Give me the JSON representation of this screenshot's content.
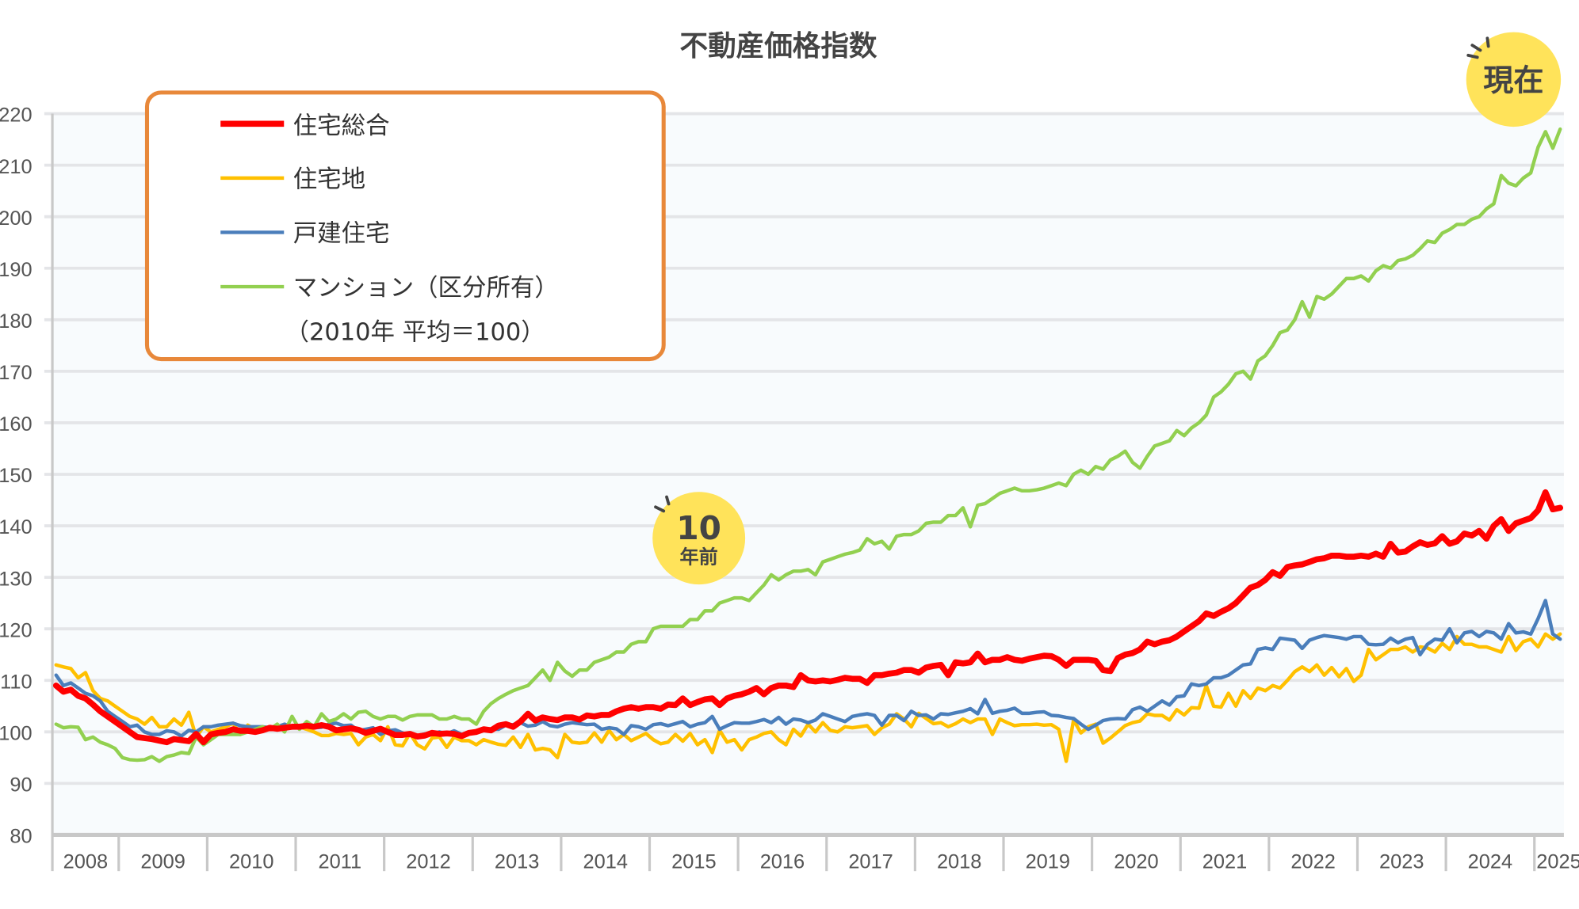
{
  "chart_data": {
    "type": "line",
    "title": "不動産価格指数",
    "note": "（2010年 平均＝100）",
    "ylim": [
      80,
      220
    ],
    "yticks": [
      80,
      90,
      100,
      110,
      120,
      130,
      140,
      150,
      160,
      170,
      180,
      190,
      200,
      210,
      220
    ],
    "x_start": "2008-04",
    "x_frequency": "monthly",
    "year_labels": [
      "2008",
      "2009",
      "2010",
      "2011",
      "2012",
      "2013",
      "2014",
      "2015",
      "2016",
      "2017",
      "2018",
      "2019",
      "2020",
      "2021",
      "2022",
      "2023",
      "2024",
      "2025"
    ],
    "grid": true,
    "legend_position": "top-left",
    "annotations": [
      {
        "label_main": "10",
        "label_sub": "年前",
        "year": "2015"
      },
      {
        "label_main": "現在",
        "year": "2025"
      }
    ],
    "series": [
      {
        "name": "住宅総合",
        "color": "#ff0000",
        "values": [
          109,
          107.8,
          108.2,
          107,
          106.5,
          105.3,
          104,
          103,
          102,
          101,
          100,
          99,
          98.8,
          98.6,
          98.3,
          98,
          98.6,
          98.4,
          98.2,
          99.6,
          98,
          99.5,
          99.8,
          100,
          100.5,
          100.2,
          100.2,
          100,
          100.3,
          100.8,
          100.6,
          100.8,
          101,
          101,
          101.2,
          101,
          101.3,
          101,
          100.3,
          100.5,
          100.7,
          100.4,
          99.8,
          100.2,
          100.6,
          100,
          99.4,
          99.4,
          99.6,
          99.1,
          99.3,
          99.8,
          99.6,
          99.7,
          99.6,
          99.2,
          99.8,
          100,
          100.5,
          100.3,
          101.2,
          101.5,
          101,
          102,
          103.5,
          102.2,
          102.8,
          102.5,
          102.3,
          102.8,
          102.8,
          102.4,
          103.2,
          103,
          103.3,
          103.3,
          104,
          104.5,
          104.8,
          104.5,
          104.8,
          104.8,
          104.5,
          105.3,
          105.2,
          106.5,
          105.2,
          105.8,
          106.3,
          106.5,
          105.2,
          106.5,
          107,
          107.3,
          107.8,
          108.5,
          107.3,
          108.5,
          109,
          109,
          108.7,
          111,
          110,
          109.8,
          110,
          109.8,
          110.1,
          110.5,
          110.3,
          110.3,
          109.5,
          111,
          111,
          111.3,
          111.5,
          112,
          112,
          111.5,
          112.5,
          112.8,
          113,
          111,
          113.5,
          113.3,
          113.5,
          115.2,
          113.5,
          114,
          114,
          114.5,
          114,
          113.8,
          114.2,
          114.5,
          114.8,
          114.7,
          114,
          112.8,
          114,
          114,
          114,
          113.8,
          112,
          111.8,
          114.3,
          115,
          115.3,
          116,
          117.5,
          117,
          117.5,
          117.8,
          118.5,
          119.5,
          120.5,
          121.5,
          123,
          122.5,
          123.3,
          124,
          125,
          126.5,
          128,
          128.5,
          129.5,
          131,
          130.3,
          132,
          132.3,
          132.5,
          133,
          133.5,
          133.7,
          134.2,
          134.2,
          134,
          134,
          134.2,
          134,
          134.6,
          134,
          136.5,
          134.8,
          135,
          136,
          136.8,
          136.3,
          136.6,
          138,
          136.5,
          137,
          138.5,
          138.1,
          139,
          137.5,
          140,
          141.3,
          139,
          140.5,
          141,
          141.5,
          143,
          146.5,
          143.2,
          143.5
        ]
      },
      {
        "name": "住宅地",
        "color": "#ffc000",
        "values": [
          113,
          112.6,
          112.3,
          110.5,
          111.5,
          108,
          106.5,
          106,
          105,
          104,
          103,
          102.5,
          101.5,
          102.8,
          101,
          101,
          102.5,
          101.3,
          103.8,
          99,
          101,
          100,
          100.5,
          101,
          101.7,
          99.5,
          101.3,
          100.5,
          100.5,
          100.7,
          100.4,
          100.8,
          100.8,
          101,
          100.5,
          100,
          99.3,
          99.3,
          99.7,
          99.5,
          99.7,
          97.5,
          99,
          99.5,
          98.3,
          101,
          97.5,
          97.3,
          99.7,
          97.5,
          96.7,
          98.8,
          99,
          97,
          99,
          98.3,
          98.3,
          97.5,
          98.5,
          98,
          97.6,
          97.4,
          99,
          97,
          99.5,
          96.5,
          96.8,
          96.5,
          95,
          99.5,
          98,
          97.8,
          98,
          99.8,
          98,
          100.3,
          98.5,
          99.5,
          98.3,
          99,
          99.7,
          98.5,
          97.7,
          98,
          99.5,
          98.2,
          99.7,
          97.5,
          98.5,
          96,
          100.3,
          98,
          98.5,
          96.5,
          98.5,
          99,
          99.7,
          100,
          98.5,
          97.5,
          100.5,
          99.2,
          101.5,
          100,
          101.8,
          100.3,
          100,
          101,
          100.8,
          101,
          101.2,
          99.5,
          100.8,
          101.5,
          103.5,
          102.5,
          101,
          103.6,
          102.6,
          101.6,
          101.8,
          101,
          101.6,
          102.5,
          101.8,
          102.5,
          102.5,
          99.5,
          102.5,
          101.8,
          101.2,
          101.4,
          101.4,
          101.5,
          101.3,
          101.4,
          100.5,
          94.3,
          102.3,
          99.8,
          101,
          101.5,
          97.8,
          98.8,
          100,
          101.2,
          101.8,
          102.1,
          103.5,
          103.2,
          103.2,
          102.3,
          104.3,
          103.3,
          104.7,
          104.6,
          109,
          105,
          104.8,
          107.5,
          105,
          108,
          106.5,
          108.5,
          108,
          109,
          108.5,
          110,
          111.7,
          112.6,
          111.7,
          113,
          111,
          112.5,
          110.7,
          112.3,
          109.8,
          111,
          116,
          114,
          115,
          116,
          116,
          116.5,
          115.5,
          116.5,
          116.3,
          115.5,
          117.2,
          116,
          118.5,
          117,
          117,
          116.5,
          116.5,
          116,
          115.5,
          118.5,
          115.8,
          117.5,
          118,
          116.5,
          119,
          118,
          119
        ]
      },
      {
        "name": "戸建住宅",
        "color": "#4a7ebb",
        "values": [
          111,
          109,
          109.5,
          108.5,
          107.5,
          107,
          106,
          104,
          103,
          102,
          101,
          101.3,
          100,
          99.5,
          99.5,
          100.2,
          100,
          99.2,
          100.3,
          100,
          101,
          101,
          101.3,
          101.5,
          101.7,
          101.2,
          101,
          101,
          101,
          100.8,
          101,
          101.5,
          101,
          101,
          101.5,
          100.8,
          100.9,
          101.5,
          101.7,
          101.2,
          101.3,
          100.2,
          100.5,
          100.8,
          99.5,
          100.2,
          100.4,
          99.8,
          99.4,
          99.3,
          99.6,
          99.5,
          100,
          99.6,
          100.2,
          99.5,
          99.8,
          100,
          100.3,
          100.5,
          100.5,
          101.3,
          101.4,
          101.8,
          101.1,
          101.3,
          102,
          101.2,
          101,
          101.5,
          101.8,
          101.6,
          101.4,
          101.5,
          100.5,
          100.8,
          100.6,
          99.5,
          101.2,
          101,
          100.5,
          101.4,
          101.6,
          101.2,
          101.6,
          102,
          101,
          101.5,
          101.8,
          103,
          100.5,
          101.2,
          101.8,
          101.7,
          101.7,
          102,
          102.4,
          101.8,
          102.8,
          101.5,
          102.5,
          102.3,
          101.8,
          102.3,
          103.5,
          103,
          102.5,
          102,
          103,
          103.3,
          103.5,
          103.2,
          101.3,
          103.2,
          103.2,
          102.2,
          104,
          103.2,
          103.3,
          102.5,
          103.5,
          103.4,
          103.7,
          104,
          104.5,
          103.5,
          106.3,
          103.6,
          104,
          104.2,
          104.6,
          103.6,
          103.6,
          103.8,
          103.9,
          103.2,
          103.1,
          102.8,
          102.6,
          101.5,
          100.5,
          101.3,
          102.2,
          102.5,
          102.6,
          102.5,
          104.3,
          104.8,
          104,
          105,
          106,
          105.2,
          106.8,
          107,
          109.3,
          109,
          109.3,
          110.5,
          110.5,
          111,
          112,
          113,
          113.2,
          116,
          116.3,
          116,
          118.2,
          118,
          117.8,
          116.2,
          117.8,
          118.3,
          118.7,
          118.5,
          118.3,
          118,
          118.5,
          118.5,
          117,
          116.9,
          117,
          118.2,
          117.3,
          118,
          118.3,
          115,
          117,
          118,
          117.8,
          120,
          117.3,
          119.2,
          119.5,
          118.5,
          119.5,
          119.2,
          118,
          121,
          119.2,
          119.4,
          119,
          122,
          125.5,
          119,
          118
        ]
      },
      {
        "name": "マンション（区分所有）",
        "color": "#92d050",
        "values": [
          101.5,
          100.8,
          101,
          100.9,
          98.5,
          99,
          98,
          97.5,
          96.8,
          95,
          94.6,
          94.5,
          94.6,
          95.2,
          94.3,
          95.2,
          95.5,
          96,
          95.8,
          99,
          97.5,
          98.5,
          99.5,
          99.5,
          99.5,
          99.5,
          100,
          100.5,
          101,
          100.5,
          101.5,
          100,
          103,
          100.5,
          102,
          101,
          103.5,
          102,
          102.5,
          103.5,
          102.5,
          103.8,
          104,
          103,
          102.5,
          103,
          103,
          102.3,
          103,
          103.3,
          103.3,
          103.3,
          102.5,
          102.5,
          103,
          102.5,
          102.5,
          101.5,
          104,
          105.5,
          106.5,
          107.3,
          108,
          108.5,
          109,
          110.5,
          112,
          110,
          113.5,
          111.8,
          110.8,
          112,
          112,
          113.5,
          114,
          114.5,
          115.5,
          115.5,
          117,
          117.5,
          117.5,
          120,
          120.5,
          120.5,
          120.5,
          120.5,
          121.8,
          121.8,
          123.5,
          123.5,
          125,
          125.5,
          126,
          126,
          125.5,
          127,
          128.5,
          130.5,
          129.5,
          130.5,
          131.2,
          131.2,
          131.5,
          130.5,
          133,
          133.5,
          134,
          134.5,
          134.8,
          135.3,
          137.5,
          136.5,
          137,
          135.5,
          138,
          138.3,
          138.3,
          139,
          140.5,
          140.7,
          140.7,
          142,
          142,
          143.5,
          139.8,
          144,
          144.3,
          145.3,
          146.3,
          146.8,
          147.3,
          146.8,
          146.8,
          147,
          147.3,
          147.8,
          148.3,
          147.8,
          150,
          150.8,
          150,
          151.5,
          151,
          152.8,
          153.5,
          154.5,
          152.3,
          151.2,
          153.5,
          155.5,
          156,
          156.5,
          158.5,
          157.5,
          159,
          160,
          161.5,
          165,
          166,
          167.5,
          169.5,
          170,
          168.5,
          172,
          173,
          175,
          177.5,
          178,
          180,
          183.5,
          180.5,
          184.5,
          184,
          185,
          186.5,
          188,
          188,
          188.5,
          187.5,
          189.5,
          190.5,
          190,
          191.5,
          191.8,
          192.5,
          193.8,
          195.3,
          195,
          196.8,
          197.5,
          198.5,
          198.5,
          199.5,
          200,
          201.5,
          202.5,
          208,
          206.5,
          206,
          207.5,
          208.5,
          213.5,
          216.5,
          213.3,
          217
        ]
      }
    ]
  }
}
